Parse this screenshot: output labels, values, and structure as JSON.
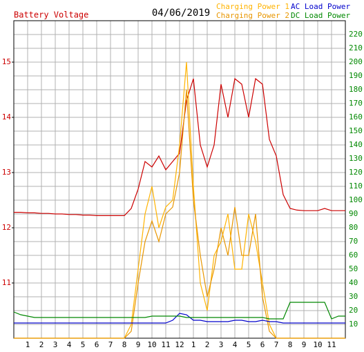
{
  "chart_data": {
    "type": "line",
    "title": "04/06/2019",
    "ylabel": "Battery Voltage",
    "x": [
      0,
      0.5,
      1,
      1.5,
      2,
      2.5,
      3,
      3.5,
      4,
      4.5,
      5,
      5.5,
      6,
      6.5,
      7,
      7.5,
      8,
      8.5,
      9,
      9.5,
      10,
      10.5,
      11,
      11.5,
      12,
      12.5,
      13,
      13.5,
      14,
      14.5,
      15,
      15.5,
      16,
      16.5,
      17,
      17.5,
      18,
      18.5,
      19,
      19.5,
      20,
      20.5,
      21,
      21.5,
      22,
      22.5,
      23,
      23.5,
      24
    ],
    "xlim": [
      0,
      24
    ],
    "xticks": [
      1,
      2,
      3,
      4,
      5,
      6,
      7,
      8,
      9,
      10,
      11,
      12,
      {
        "value": 13,
        "label": "1"
      },
      {
        "value": 14,
        "label": "2"
      },
      {
        "value": 15,
        "label": "3"
      },
      {
        "value": 16,
        "label": "4"
      },
      {
        "value": 17,
        "label": "5"
      },
      {
        "value": 18,
        "label": "6"
      },
      {
        "value": 19,
        "label": "7"
      },
      {
        "value": 20,
        "label": "8"
      },
      {
        "value": 21,
        "label": "9"
      },
      {
        "value": 22,
        "label": "10"
      },
      {
        "value": 23,
        "label": "11"
      }
    ],
    "ylim": [
      10,
      15.75
    ],
    "yticks": [
      11,
      12,
      13,
      14,
      15
    ],
    "y2lim": [
      0,
      230
    ],
    "y2ticks": [
      10,
      20,
      30,
      40,
      50,
      60,
      70,
      80,
      90,
      100,
      110,
      120,
      130,
      140,
      150,
      160,
      170,
      180,
      190,
      200,
      210,
      220
    ],
    "grid": true,
    "legend": "top-right",
    "series": [
      {
        "name": "Battery Voltage",
        "color": "#cc0000",
        "axis": "y",
        "legend": false,
        "values": [
          12.28,
          12.28,
          12.27,
          12.27,
          12.26,
          12.26,
          12.25,
          12.25,
          12.24,
          12.24,
          12.23,
          12.23,
          12.22,
          12.22,
          12.22,
          12.22,
          12.22,
          12.35,
          12.7,
          13.2,
          13.1,
          13.3,
          13.05,
          13.2,
          13.35,
          14.3,
          14.7,
          13.5,
          13.1,
          13.5,
          14.6,
          14.0,
          14.7,
          14.6,
          14.0,
          14.7,
          14.6,
          13.6,
          13.3,
          12.6,
          12.35,
          12.32,
          12.31,
          12.31,
          12.31,
          12.35,
          12.31,
          12.31,
          12.31
        ]
      },
      {
        "name": "Charging Power 1",
        "color": "#ffb300",
        "axis": "y2",
        "values": [
          0,
          0,
          0,
          0,
          0,
          0,
          0,
          0,
          0,
          0,
          0,
          0,
          0,
          0,
          0,
          0,
          0,
          10,
          50,
          90,
          110,
          80,
          95,
          100,
          140,
          200,
          110,
          40,
          20,
          60,
          70,
          90,
          50,
          50,
          90,
          70,
          40,
          10,
          0,
          0,
          0,
          0,
          0,
          0,
          0,
          0,
          0,
          0,
          0
        ]
      },
      {
        "name": "Charging Power 2",
        "color": "#e89600",
        "axis": "y2",
        "values": [
          0,
          0,
          0,
          0,
          0,
          0,
          0,
          0,
          0,
          0,
          0,
          0,
          0,
          0,
          0,
          0,
          0,
          5,
          40,
          70,
          85,
          70,
          90,
          95,
          120,
          180,
          100,
          60,
          30,
          50,
          80,
          60,
          95,
          60,
          60,
          90,
          30,
          5,
          0,
          0,
          0,
          0,
          0,
          0,
          0,
          0,
          0,
          0,
          0
        ]
      },
      {
        "name": "AC Load Power",
        "color": "#0000cc",
        "axis": "y2",
        "values": [
          11,
          11,
          11,
          11,
          11,
          11,
          11,
          11,
          11,
          11,
          11,
          11,
          11,
          11,
          11,
          11,
          11,
          11,
          11,
          11,
          11,
          11,
          11,
          13,
          18,
          17,
          13,
          13,
          12,
          12,
          12,
          12,
          13,
          13,
          12,
          12,
          13,
          12,
          12,
          11,
          11,
          11,
          11,
          11,
          11,
          11,
          11,
          11,
          11
        ]
      },
      {
        "name": "DC Load Power",
        "color": "#008800",
        "axis": "y2",
        "values": [
          19,
          17,
          16,
          15,
          15,
          15,
          15,
          15,
          15,
          15,
          15,
          15,
          15,
          15,
          15,
          15,
          15,
          15,
          15,
          15,
          16,
          16,
          16,
          16,
          16,
          15,
          15,
          15,
          15,
          15,
          15,
          15,
          15,
          15,
          15,
          15,
          15,
          14,
          14,
          14,
          26,
          26,
          26,
          26,
          26,
          26,
          14,
          16,
          16
        ]
      }
    ]
  }
}
